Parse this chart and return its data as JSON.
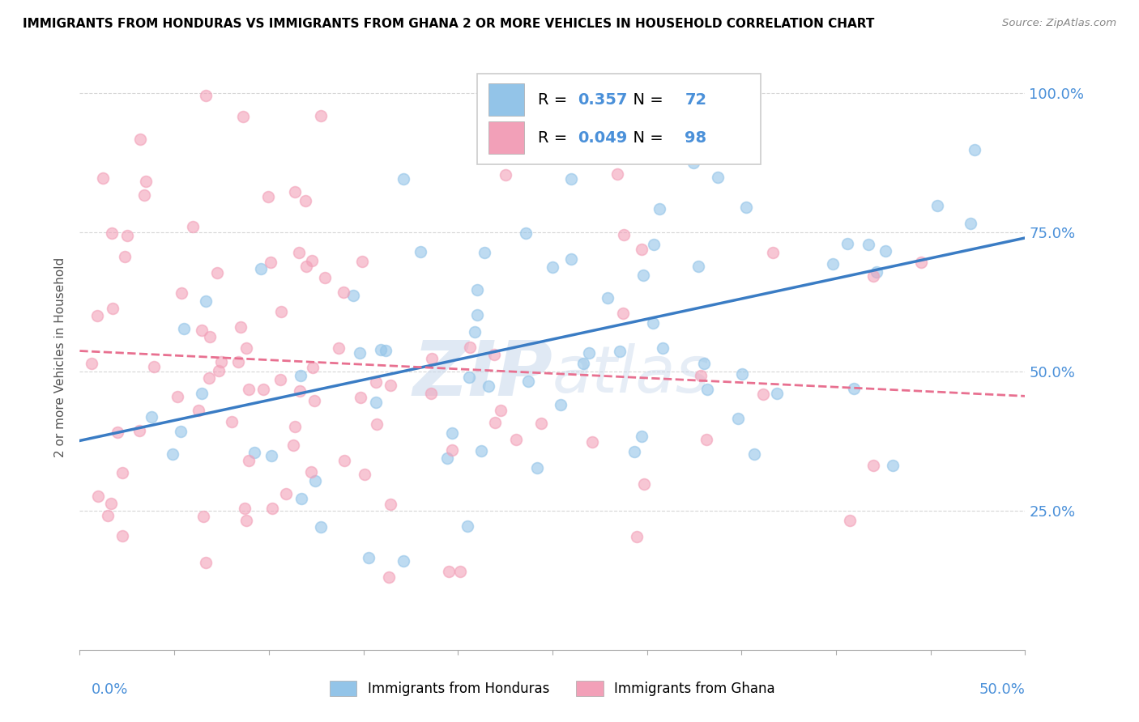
{
  "title": "IMMIGRANTS FROM HONDURAS VS IMMIGRANTS FROM GHANA 2 OR MORE VEHICLES IN HOUSEHOLD CORRELATION CHART",
  "source": "Source: ZipAtlas.com",
  "ylabel": "2 or more Vehicles in Household",
  "legend_label1": "Immigrants from Honduras",
  "legend_label2": "Immigrants from Ghana",
  "R1": "0.357",
  "N1": "72",
  "R2": "0.049",
  "N2": "98",
  "color1": "#93C4E8",
  "color2": "#F2A0B8",
  "trendline1_color": "#3A7CC4",
  "trendline2_color": "#E87090",
  "xlim": [
    0.0,
    0.5
  ],
  "ylim": [
    0.0,
    1.05
  ],
  "ytick_positions": [
    0.25,
    0.5,
    0.75,
    1.0
  ],
  "ytick_labels": [
    "25.0%",
    "50.0%",
    "75.0%",
    "100.0%"
  ],
  "xtick_left_label": "0.0%",
  "xtick_right_label": "50.0%",
  "watermark": "ZIPatlas",
  "marker_size": 100,
  "marker_alpha": 0.6
}
